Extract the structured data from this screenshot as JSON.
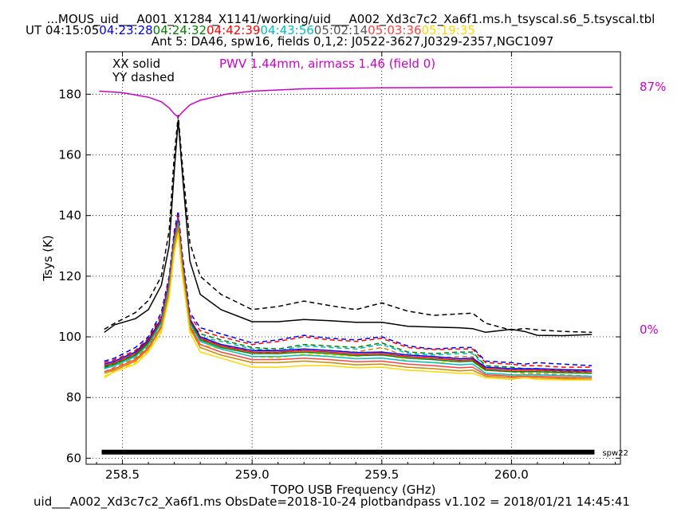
{
  "chart_data": {
    "type": "line",
    "title": "...MOUS_uid___A001_X1284_X1141/working/uid___A002_Xd3c7c2_Xa6f1.ms.h_tsyscal.s6_5.tsyscal.tbl",
    "ut_label": "UT",
    "ut_times": [
      {
        "text": "04:15:05",
        "color": "#000000"
      },
      {
        "text": "04:23:28",
        "color": "#0000ff"
      },
      {
        "text": "04:24:32",
        "color": "#008000"
      },
      {
        "text": "04:42:39",
        "color": "#ff0000"
      },
      {
        "text": "04:43:56",
        "color": "#00bfbf"
      },
      {
        "text": "05:02:14",
        "color": "#555555"
      },
      {
        "text": "05:03:36",
        "color": "#ff4040"
      },
      {
        "text": "05:19:35",
        "color": "#ffd700"
      }
    ],
    "subtitle": "Ant 5: DA46,  spw16,  fields 0,1,2: J0522-3627,J0329-2357,NGC1097",
    "legend_xx": "XX solid",
    "legend_yy": "YY dashed",
    "pwv_text": "PWV 1.44mm, airmass 1.46 (field 0)",
    "pwv_right_top": "87%",
    "pwv_right_bottom": "0%",
    "xlabel": "TOPO USB Frequency (GHz)",
    "ylabel": "Tsys (K)",
    "xlim": [
      258.36,
      260.42
    ],
    "ylim": [
      58,
      194
    ],
    "xticks": [
      258.5,
      259.0,
      259.5,
      260.0
    ],
    "xtick_labels": [
      "258.5",
      "259.0",
      "259.5",
      "260.0"
    ],
    "yticks": [
      60,
      80,
      100,
      120,
      140,
      160,
      180
    ],
    "ytick_labels": [
      "60",
      "80",
      "100",
      "120",
      "140",
      "160",
      "180"
    ],
    "grid": true,
    "spw_bar": {
      "x0": 258.42,
      "x1": 260.32,
      "y": 62,
      "label": "spw22"
    },
    "footer": "uid___A002_Xd3c7c2_Xa6f1.ms  ObsDate=2018-10-24   plotbandpass v1.102 = 2018/01/21 14:45:41",
    "x": [
      258.43,
      258.47,
      258.55,
      258.6,
      258.65,
      258.68,
      258.7,
      258.715,
      258.73,
      258.76,
      258.8,
      258.88,
      259.0,
      259.1,
      259.2,
      259.3,
      259.4,
      259.5,
      259.6,
      259.7,
      259.8,
      259.85,
      259.9,
      260.0,
      260.05,
      260.1,
      260.2,
      260.31
    ],
    "series": [
      {
        "color": "#000000",
        "style": "solid",
        "values": [
          101.5,
          104,
          106,
          109,
          117,
          130,
          155,
          171.5,
          155,
          125,
          114,
          109,
          105,
          105,
          105.7,
          105.3,
          104.8,
          104.8,
          103.5,
          103.2,
          103,
          102.7,
          101.5,
          102.5,
          101.8,
          100.5,
          100.4,
          100.8
        ]
      },
      {
        "color": "#000000",
        "style": "dashed",
        "values": [
          102.5,
          104.5,
          108,
          112,
          120,
          135,
          160,
          173,
          158,
          131,
          120,
          114,
          109,
          110,
          111.8,
          110.3,
          109,
          111.2,
          108.5,
          107.1,
          107.6,
          107.8,
          104.5,
          102.2,
          102.8,
          102.3,
          101.8,
          101.5
        ]
      },
      {
        "color": "#0000ff",
        "style": "dashed",
        "values": [
          92,
          93,
          96.5,
          100,
          108,
          120,
          135,
          141.5,
          128,
          108,
          103,
          101,
          98,
          99,
          100.5,
          99.5,
          99,
          100,
          97,
          96,
          96.5,
          96.5,
          92,
          91.5,
          91,
          91.5,
          91,
          90.5
        ]
      },
      {
        "color": "#ff0000",
        "style": "dashed",
        "values": [
          91.5,
          92.5,
          95.5,
          99.5,
          107,
          119,
          134,
          140,
          127,
          107,
          102,
          100,
          97.5,
          98.5,
          100,
          99,
          98.5,
          99.5,
          96.5,
          95.8,
          96,
          96,
          91.5,
          91,
          90.5,
          90.5,
          90,
          90
        ]
      },
      {
        "color": "#008000",
        "style": "dashed",
        "values": [
          90,
          91.5,
          94.5,
          98.5,
          105,
          117,
          132,
          138,
          125,
          105,
          101,
          99,
          96.5,
          96,
          97.5,
          97,
          96.5,
          98,
          95,
          94.5,
          95,
          95,
          90.5,
          90,
          89.5,
          89.5,
          89,
          88.5
        ]
      },
      {
        "color": "#00bfbf",
        "style": "dashed",
        "values": [
          89.5,
          91,
          94,
          98,
          104.5,
          116,
          131,
          137,
          124,
          104.5,
          100,
          98.5,
          96,
          95.5,
          97,
          96.5,
          96,
          97.5,
          94.5,
          94,
          94.5,
          94.5,
          90,
          89.5,
          89,
          89,
          88.5,
          88
        ]
      },
      {
        "color": "#cc8800",
        "style": "dashed",
        "values": [
          88.5,
          90,
          93,
          97,
          103.5,
          115,
          130,
          136,
          123,
          103.5,
          99,
          97.5,
          95,
          94.5,
          96,
          95.5,
          95,
          96.5,
          93.5,
          93,
          93.5,
          93.5,
          89,
          88.5,
          88,
          88,
          87.5,
          87
        ]
      },
      {
        "color": "#ffd700",
        "style": "dashed",
        "values": [
          87,
          89,
          91.5,
          95.5,
          102,
          113,
          128,
          134,
          121,
          102,
          97.5,
          96,
          93.5,
          93,
          94.5,
          94,
          93.5,
          95,
          92,
          91.5,
          92,
          92,
          88,
          87.5,
          87,
          87,
          86.5,
          86
        ]
      },
      {
        "color": "#0000ff",
        "style": "solid",
        "values": [
          91,
          92,
          95,
          99,
          106,
          118,
          133,
          139,
          126,
          106,
          100,
          97.5,
          95.5,
          95.5,
          96,
          95.5,
          94.8,
          95,
          94,
          93.5,
          92.8,
          93,
          90,
          89.5,
          89.5,
          89.5,
          89.2,
          89
        ]
      },
      {
        "color": "#ff0000",
        "style": "solid",
        "values": [
          90.5,
          91.5,
          94.5,
          98.5,
          105.5,
          117.5,
          132.5,
          138.5,
          125.5,
          105.5,
          99.5,
          97,
          95,
          95,
          95.5,
          95,
          94.3,
          94.5,
          93.5,
          93,
          92.3,
          92.5,
          89.5,
          89,
          89,
          89,
          88.7,
          88.5
        ]
      },
      {
        "color": "#008000",
        "style": "solid",
        "values": [
          90,
          91,
          94,
          98,
          105,
          117,
          132,
          138,
          125,
          105,
          99,
          96.5,
          94.5,
          94.5,
          95,
          94.5,
          93.8,
          94,
          93,
          92.5,
          91.8,
          92,
          89,
          88.5,
          88.5,
          88.5,
          88.2,
          88
        ]
      },
      {
        "color": "#00bfbf",
        "style": "solid",
        "values": [
          89.5,
          90.5,
          93.5,
          97.5,
          104.5,
          116.5,
          131.5,
          137.5,
          124.5,
          104.5,
          98.5,
          96,
          93.5,
          93.5,
          94,
          93.5,
          92.8,
          93,
          92,
          91.5,
          90.8,
          91,
          88,
          87.5,
          87.5,
          87.5,
          87.2,
          87
        ]
      },
      {
        "color": "#ff4040",
        "style": "solid",
        "values": [
          88.5,
          89.5,
          92.5,
          96.5,
          103.5,
          115.5,
          130.5,
          136.5,
          123.5,
          103.5,
          97.5,
          95,
          92.5,
          92.5,
          93,
          92.5,
          91.8,
          92,
          91,
          90.5,
          89.8,
          90,
          87.5,
          87,
          87,
          87,
          86.7,
          86.5
        ]
      },
      {
        "color": "#cc8800",
        "style": "solid",
        "values": [
          88,
          89,
          92,
          96,
          103,
          115,
          130,
          136,
          123,
          103,
          96.5,
          94,
          91.5,
          91.5,
          92,
          91.5,
          90.8,
          91,
          90,
          89.5,
          88.8,
          89,
          87,
          86.5,
          86.5,
          86.5,
          86.2,
          86
        ]
      },
      {
        "color": "#ffd700",
        "style": "solid",
        "values": [
          86.5,
          88.5,
          91,
          95,
          101.5,
          113,
          128,
          134,
          121,
          101.5,
          95,
          93,
          90,
          90,
          90.5,
          90.5,
          89.8,
          90,
          89,
          88.5,
          88,
          88,
          86.5,
          86,
          86.5,
          86,
          85.8,
          85.8
        ]
      }
    ],
    "pwv_x": [
      258.41,
      258.5,
      258.6,
      258.65,
      258.68,
      258.7,
      258.715,
      258.73,
      258.76,
      258.8,
      258.9,
      259.0,
      259.2,
      259.5,
      260.0,
      260.39
    ],
    "pwv_y": [
      181,
      180.5,
      179,
      177.5,
      175.5,
      173.5,
      172.5,
      174,
      176.5,
      178,
      180,
      181,
      181.8,
      182.1,
      182.3,
      182.3
    ],
    "pwv_color": "#cc00cc"
  }
}
